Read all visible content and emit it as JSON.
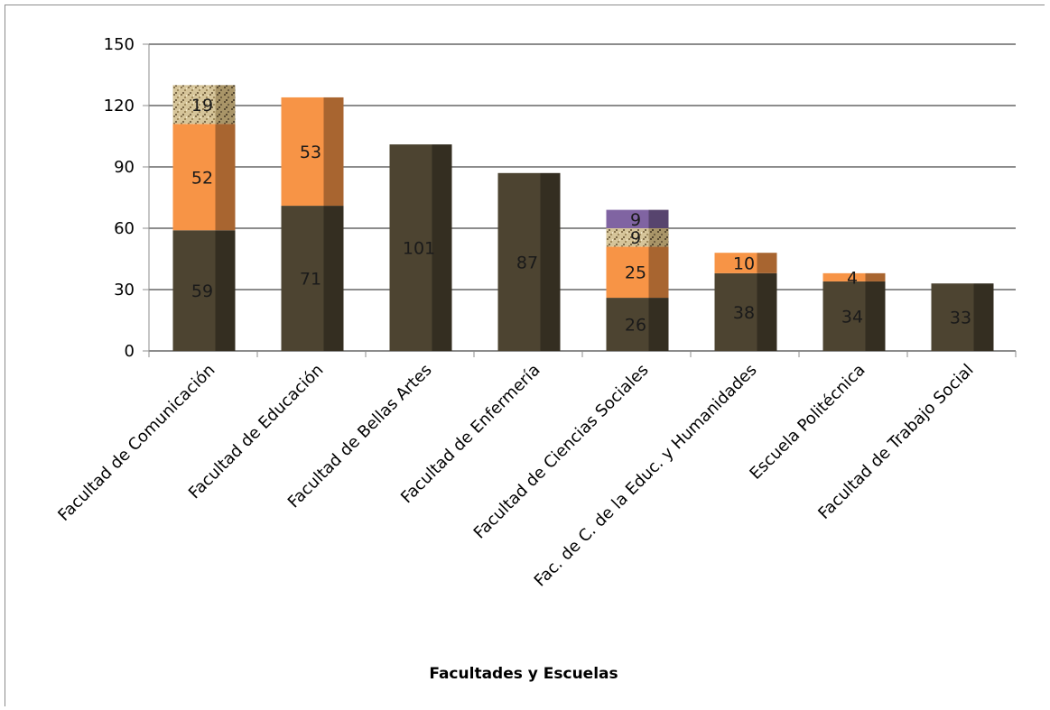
{
  "chart_data": {
    "type": "bar",
    "stacked": true,
    "title": "",
    "xlabel": "Facultades y Escuelas",
    "ylabel": "",
    "ylim": [
      0,
      150
    ],
    "yticks": [
      0,
      30,
      60,
      90,
      120,
      150
    ],
    "grid": true,
    "legend": "none",
    "categories": [
      "Facultad de Comunicación",
      "Facultad de Educación",
      "Facultad de Bellas Artes",
      "Facultad de Enfermería",
      "Facultad de Ciencias Sociales",
      "Fac. de C. de la Educ. y Humanidades",
      "Escuela Politécnica",
      "Facultad de Trabajo Social"
    ],
    "series": [
      {
        "color": "#4d4431",
        "values": [
          59,
          71,
          101,
          87,
          26,
          38,
          34,
          33
        ]
      },
      {
        "color": "#f79446",
        "values": [
          52,
          53,
          0,
          0,
          25,
          10,
          4,
          0
        ]
      },
      {
        "color": "#cdb88a",
        "values": [
          19,
          0,
          0,
          0,
          9,
          0,
          0,
          0
        ]
      },
      {
        "color": "#8064a2",
        "values": [
          0,
          0,
          0,
          0,
          9,
          0,
          0,
          0
        ]
      }
    ]
  }
}
